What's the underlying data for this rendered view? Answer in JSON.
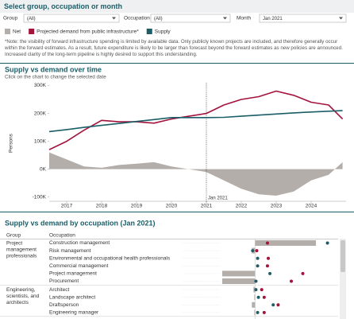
{
  "filter_panel": {
    "title": "Select group, occupation or month",
    "filters": [
      {
        "label": "Group",
        "value": "(All)"
      },
      {
        "label": "Occupation",
        "value": "(All)"
      },
      {
        "label": "Month",
        "value": "Jan 2021"
      }
    ]
  },
  "note": "*Note: the visibility of forward infrastructure spending is limited by available data. Only publicly known projects are included, and therefore generally occur within the forward estimates. As a result, future expenditure is likely to be larger than forecast beyond the forward estimates as new policies are announced. Increased clarity of the long-term pipeline is highly desired to support this understanding.",
  "chart_data": [
    {
      "type": "line",
      "title": "Supply vs demand over time",
      "subtitle": "Click on the chart to change the selected date",
      "y_label": "Persons",
      "x": [
        2016.5,
        2017,
        2017.5,
        2018,
        2018.5,
        2019,
        2019.5,
        2020,
        2020.5,
        2021,
        2021.5,
        2022,
        2022.5,
        2023,
        2023.5,
        2024,
        2024.5,
        2024.9
      ],
      "xlim": [
        2016.5,
        2025
      ],
      "xticks": [
        2017,
        2018,
        2019,
        2020,
        2021,
        2022,
        2023,
        2024
      ],
      "ylim": [
        -115000,
        310000
      ],
      "yticks": [
        {
          "value": -100000,
          "label": "-100K"
        },
        {
          "value": 0,
          "label": "0K"
        },
        {
          "value": 100000,
          "label": "100K"
        },
        {
          "value": 200000,
          "label": "200K"
        },
        {
          "value": 300000,
          "label": "300K"
        }
      ],
      "grid": false,
      "series": [
        {
          "name": "Net",
          "color": "#b4aeaa",
          "style": "area",
          "values": [
            60000,
            35000,
            10000,
            5000,
            15000,
            20000,
            25000,
            10000,
            0,
            -10000,
            -40000,
            -70000,
            -90000,
            -95000,
            -80000,
            -40000,
            -20000,
            25000
          ]
        },
        {
          "name": "Projected demand from public infrastructure*",
          "color": "#a3133c",
          "style": "line",
          "values": [
            70000,
            100000,
            140000,
            175000,
            170000,
            170000,
            165000,
            180000,
            190000,
            200000,
            230000,
            250000,
            260000,
            280000,
            265000,
            240000,
            230000,
            180000
          ]
        },
        {
          "name": "Supply",
          "color": "#1b5e68",
          "style": "line",
          "values": [
            135000,
            142000,
            150000,
            157000,
            164000,
            171000,
            178000,
            185000,
            185000,
            185000,
            186000,
            190000,
            194000,
            198000,
            202000,
            205000,
            208000,
            210000
          ]
        }
      ],
      "selected": {
        "x": 2021,
        "label": "Jan 2021"
      }
    },
    {
      "type": "dot",
      "title": "Supply vs demand by occupation (Jan 2021)",
      "column_headers": [
        "Group",
        "Occupation"
      ],
      "groups": [
        {
          "name": "Project management professionals",
          "categories": [
            "Construction management",
            "Risk management",
            "Environmental and occupational health professionals",
            "Commercial management",
            "Project management",
            "Procurement"
          ]
        },
        {
          "name": "Engineering, scientists, and architects",
          "categories": [
            "Architect",
            "Landscape architect",
            "Draftsperson",
            "Engineering manager"
          ]
        }
      ],
      "xlim": [
        -2000,
        5000
      ],
      "series": [
        {
          "name": "Net",
          "color": "#b4aeaa",
          "values": [
            3700,
            -200,
            0,
            0,
            -2000,
            -2000,
            -100,
            -50,
            -200,
            -50
          ]
        },
        {
          "name": "Projected demand from public infrastructure*",
          "color": "#a3133c",
          "values": [
            750,
            100,
            800,
            750,
            2900,
            2200,
            400,
            550,
            1400,
            550
          ]
        },
        {
          "name": "Supply",
          "color": "#1b5e68",
          "values": [
            4400,
            -150,
            150,
            150,
            900,
            50,
            50,
            200,
            1100,
            150
          ]
        }
      ]
    }
  ]
}
